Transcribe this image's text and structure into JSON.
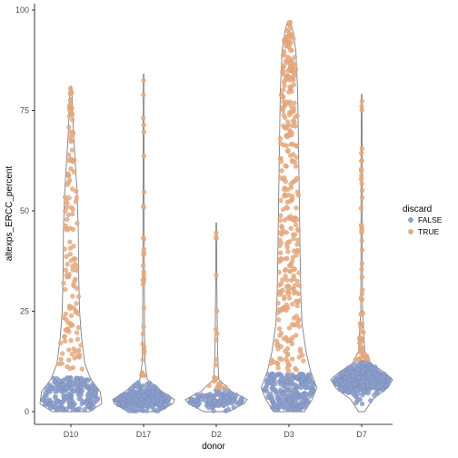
{
  "chart_data": {
    "type": "scatter",
    "subtype": "violin-beeswarm",
    "title": "",
    "xlabel": "donor",
    "ylabel": "altexps_ERCC_percent",
    "categories": [
      "D10",
      "D17",
      "D2",
      "D3",
      "D7"
    ],
    "ylim": [
      0,
      100
    ],
    "yticks": [
      0,
      25,
      50,
      75,
      100
    ],
    "grid": false,
    "legend": {
      "title": "discard",
      "position": "right",
      "entries": [
        {
          "label": "FALSE",
          "color": "#8da0cb"
        },
        {
          "label": "TRUE",
          "color": "#e8ab80"
        }
      ]
    },
    "violin_color": "#7f7f7f",
    "violins": [
      {
        "donor": "D10",
        "max": 81,
        "profile": [
          [
            0,
            0.6
          ],
          [
            2,
            1.0
          ],
          [
            5,
            0.95
          ],
          [
            8,
            0.65
          ],
          [
            12,
            0.45
          ],
          [
            18,
            0.35
          ],
          [
            25,
            0.28
          ],
          [
            35,
            0.25
          ],
          [
            45,
            0.24
          ],
          [
            55,
            0.2
          ],
          [
            62,
            0.14
          ],
          [
            70,
            0.08
          ],
          [
            78,
            0.04
          ],
          [
            81,
            0.02
          ]
        ]
      },
      {
        "donor": "D17",
        "max": 84,
        "profile": [
          [
            0,
            0.5
          ],
          [
            2,
            0.95
          ],
          [
            3,
            1.0
          ],
          [
            5,
            0.6
          ],
          [
            8,
            0.12
          ],
          [
            12,
            0.05
          ],
          [
            20,
            0.03
          ],
          [
            40,
            0.02
          ],
          [
            60,
            0.015
          ],
          [
            84,
            0.01
          ]
        ]
      },
      {
        "donor": "D2",
        "max": 47,
        "profile": [
          [
            0,
            0.4
          ],
          [
            2,
            0.9
          ],
          [
            3,
            1.0
          ],
          [
            5,
            0.5
          ],
          [
            8,
            0.08
          ],
          [
            15,
            0.04
          ],
          [
            30,
            0.02
          ],
          [
            47,
            0.01
          ]
        ]
      },
      {
        "donor": "D3",
        "max": 97,
        "profile": [
          [
            0,
            0.5
          ],
          [
            3,
            0.75
          ],
          [
            6,
            0.9
          ],
          [
            10,
            0.7
          ],
          [
            15,
            0.55
          ],
          [
            22,
            0.42
          ],
          [
            30,
            0.38
          ],
          [
            40,
            0.36
          ],
          [
            50,
            0.34
          ],
          [
            60,
            0.32
          ],
          [
            70,
            0.3
          ],
          [
            80,
            0.28
          ],
          [
            90,
            0.22
          ],
          [
            95,
            0.12
          ],
          [
            97,
            0.05
          ]
        ]
      },
      {
        "donor": "D7",
        "max": 79,
        "profile": [
          [
            0,
            0.1
          ],
          [
            3,
            0.35
          ],
          [
            6,
            0.85
          ],
          [
            8,
            1.0
          ],
          [
            10,
            0.7
          ],
          [
            12,
            0.3
          ],
          [
            15,
            0.1
          ],
          [
            25,
            0.03
          ],
          [
            40,
            0.02
          ],
          [
            60,
            0.02
          ],
          [
            79,
            0.01
          ]
        ]
      }
    ],
    "series": [
      {
        "name": "FALSE",
        "color": "#8da0cb",
        "points": [
          {
            "donor": "D10",
            "n": 230,
            "dist": "uniform",
            "min": 0.3,
            "max": 8.5
          },
          {
            "donor": "D17",
            "n": 330,
            "dist": "normal",
            "mean": 3.2,
            "sd": 1.4,
            "min": 0.2,
            "max": 8
          },
          {
            "donor": "D2",
            "n": 130,
            "dist": "normal",
            "mean": 2.7,
            "sd": 1.1,
            "min": 0.2,
            "max": 5.5
          },
          {
            "donor": "D3",
            "n": 260,
            "dist": "uniform",
            "min": 0.5,
            "max": 9.5
          },
          {
            "donor": "D7",
            "n": 430,
            "dist": "normal",
            "mean": 8.0,
            "sd": 1.8,
            "min": 1,
            "max": 14
          }
        ]
      },
      {
        "name": "TRUE",
        "color": "#e8ab80",
        "points": [
          {
            "donor": "D10",
            "n": 140,
            "dist": "uniform",
            "min": 10,
            "max": 81
          },
          {
            "donor": "D17",
            "n": 35,
            "dist": "tail",
            "min": 9,
            "max": 84
          },
          {
            "donor": "D2",
            "n": 22,
            "dist": "tail",
            "min": 6,
            "max": 47
          },
          {
            "donor": "D3",
            "n": 330,
            "dist": "uniform",
            "min": 10,
            "max": 97
          },
          {
            "donor": "D7",
            "n": 70,
            "dist": "tail",
            "min": 13,
            "max": 79
          }
        ]
      }
    ]
  }
}
